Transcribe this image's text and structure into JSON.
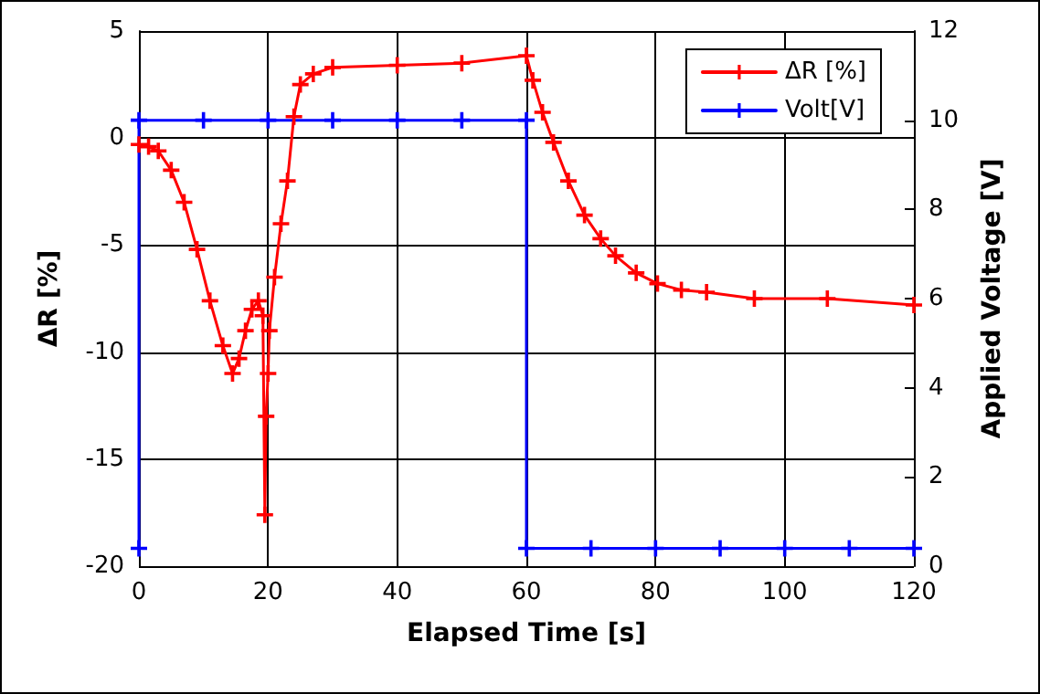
{
  "chart_data": {
    "type": "line",
    "xlabel": "Elapsed Time [s]",
    "ylabel": "ΔR [%]",
    "y2label": "Applied Voltage [V]",
    "xlim": [
      0,
      120
    ],
    "xticks": [
      0,
      20,
      40,
      60,
      80,
      100,
      120
    ],
    "ylim": [
      -20,
      5
    ],
    "yticks": [
      -20,
      -15,
      -10,
      -5,
      0,
      5
    ],
    "y2lim": [
      0,
      12
    ],
    "y2ticks": [
      0,
      2,
      4,
      6,
      8,
      10,
      12
    ],
    "grid": true,
    "legend": "top right",
    "marker": "cross",
    "line_style": "solid",
    "series": [
      {
        "name": "ΔR [%]",
        "color": "#ff0000",
        "x": [
          0,
          1.5,
          3,
          5,
          7,
          9,
          11,
          13,
          14.5,
          15.5,
          16.5,
          17.5,
          18.5,
          19.2,
          19.5,
          19.7,
          20,
          20.2,
          21,
          22,
          23,
          24,
          25,
          27,
          30,
          40,
          50,
          60,
          61,
          62.5,
          64.2,
          66.5,
          69,
          71.5,
          73.8,
          77,
          80.3,
          84,
          87.9,
          95.3,
          106.6,
          120
        ],
        "values": [
          -0.3,
          -0.4,
          -0.6,
          -1.5,
          -3,
          -5.2,
          -7.6,
          -9.7,
          -11,
          -10.3,
          -9,
          -8,
          -7.6,
          -8.3,
          -17.6,
          -13,
          -11,
          -9,
          -6.5,
          -4,
          -2,
          1,
          2.5,
          3,
          3.3,
          3.4,
          3.5,
          3.85,
          2.7,
          1.2,
          -0.2,
          -2,
          -3.6,
          -4.7,
          -5.5,
          -6.3,
          -6.8,
          -7.1,
          -7.2,
          -7.5,
          -7.5,
          -7.8
        ]
      },
      {
        "name": "Volt[V]",
        "color": "#0000ff",
        "axis": "y2",
        "x": [
          0,
          0,
          10,
          20,
          30,
          40,
          50,
          60,
          60,
          70,
          80,
          90,
          100,
          110,
          120
        ],
        "values": [
          0.4,
          10,
          10,
          10,
          10,
          10,
          10,
          10,
          0.4,
          0.4,
          0.4,
          0.4,
          0.4,
          0.4,
          0.4
        ]
      }
    ]
  }
}
